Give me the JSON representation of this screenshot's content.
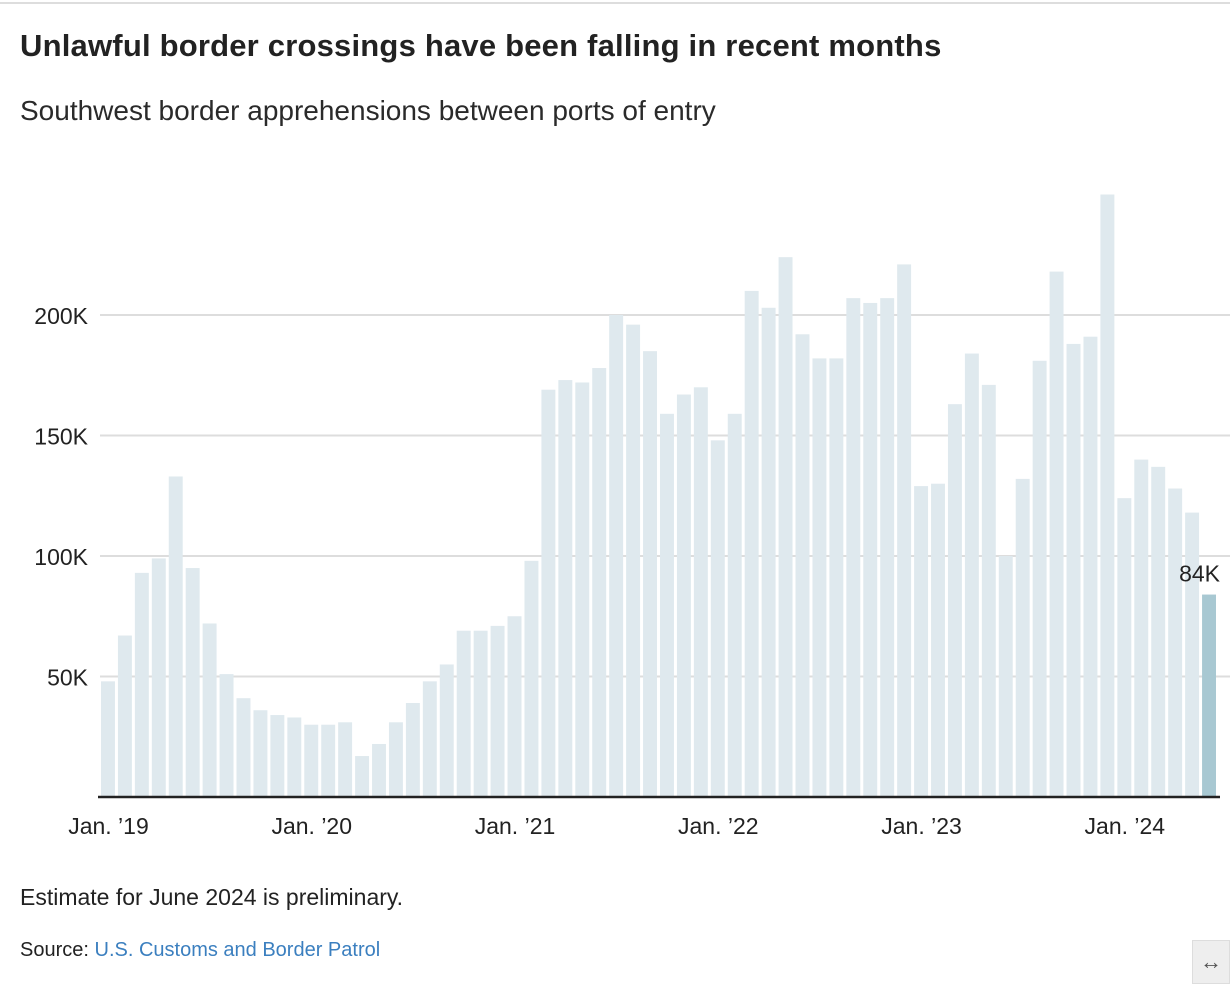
{
  "chart_data": {
    "type": "bar",
    "title": "Unlawful border crossings have been falling in recent months",
    "subtitle": "Southwest border apprehensions between ports of entry",
    "xlabel": "",
    "ylabel": "",
    "ylim": [
      0,
      250000
    ],
    "yticks": [
      50000,
      100000,
      150000,
      200000
    ],
    "ytick_labels": [
      "50K",
      "100K",
      "150K",
      "200K"
    ],
    "xtick_labels": [
      "Jan. ’19",
      "Jan. ’20",
      "Jan. ’21",
      "Jan. ’22",
      "Jan. ’23",
      "Jan. ’24"
    ],
    "xtick_indices": [
      0,
      12,
      24,
      36,
      48,
      60
    ],
    "start_month": "2019-01",
    "values": [
      48000,
      67000,
      93000,
      99000,
      133000,
      95000,
      72000,
      51000,
      41000,
      36000,
      34000,
      33000,
      30000,
      30000,
      31000,
      17000,
      22000,
      31000,
      39000,
      48000,
      55000,
      69000,
      69000,
      71000,
      75000,
      98000,
      169000,
      173000,
      172000,
      178000,
      200000,
      196000,
      185000,
      159000,
      167000,
      170000,
      148000,
      159000,
      210000,
      203000,
      224000,
      192000,
      182000,
      182000,
      207000,
      205000,
      207000,
      221000,
      129000,
      130000,
      163000,
      184000,
      171000,
      100000,
      132000,
      181000,
      218000,
      188000,
      191000,
      250000,
      124000,
      140000,
      137000,
      128000,
      118000,
      84000
    ],
    "highlight_label": "84K",
    "grid": true,
    "colors": {
      "bar": "#dfe9ee",
      "highlight": "#a8c8d2",
      "grid": "#dddddd",
      "axis": "#222222"
    }
  },
  "note": "Estimate for June 2024 is preliminary.",
  "source": {
    "label": "Source:",
    "link": "U.S. Customs and Border Patrol"
  },
  "expand_icon": "↔"
}
